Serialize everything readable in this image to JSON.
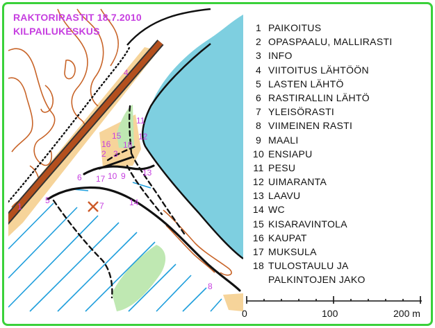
{
  "title": {
    "line1": "RAKTORIRASTIT  18.7.2010",
    "line2": "KILPAILUKESKUS"
  },
  "legend": [
    {
      "num": "1",
      "text": "PAIKOITUS"
    },
    {
      "num": "2",
      "text": "OPASPAALU, MALLIRASTI"
    },
    {
      "num": "3",
      "text": "INFO"
    },
    {
      "num": "4",
      "text": "VIITOITUS LÄHTÖÖN"
    },
    {
      "num": "5",
      "text": "LASTEN LÄHTÖ"
    },
    {
      "num": "6",
      "text": "RASTIRALLIN LÄHTÖ"
    },
    {
      "num": "7",
      "text": "YLEISÖRASTI"
    },
    {
      "num": "8",
      "text": "VIIMEINEN RASTI"
    },
    {
      "num": "9",
      "text": "MAALI"
    },
    {
      "num": "10",
      "text": "ENSIAPU"
    },
    {
      "num": "11",
      "text": "PESU"
    },
    {
      "num": "12",
      "text": "UIMARANTA"
    },
    {
      "num": "13",
      "text": "LAAVU"
    },
    {
      "num": "14",
      "text": "WC"
    },
    {
      "num": "15",
      "text": "KISARAVINTOLA"
    },
    {
      "num": "16",
      "text": "KAUPAT"
    },
    {
      "num": "17",
      "text": "MUKSULA"
    },
    {
      "num": "18",
      "text": "TULOSTAULU JA",
      "cont": "PALKINTOJEN JAKO"
    }
  ],
  "scale": {
    "labels": [
      "0",
      "100",
      "200 m"
    ]
  },
  "map_labels": [
    "1",
    "2",
    "3",
    "4",
    "5",
    "6",
    "7",
    "8",
    "9",
    "10",
    "11",
    "12",
    "13",
    "14",
    "15",
    "16",
    "17",
    "18"
  ],
  "colors": {
    "lake": "#7ecfe0",
    "contour": "#c86428",
    "road": "#b4501e",
    "road_edge": "#333333",
    "sand": "#f6d49a",
    "field": "#bfe8b2",
    "marsh": "#1e9edc",
    "label": "#c63fe0",
    "frame": "#3ad13a"
  }
}
